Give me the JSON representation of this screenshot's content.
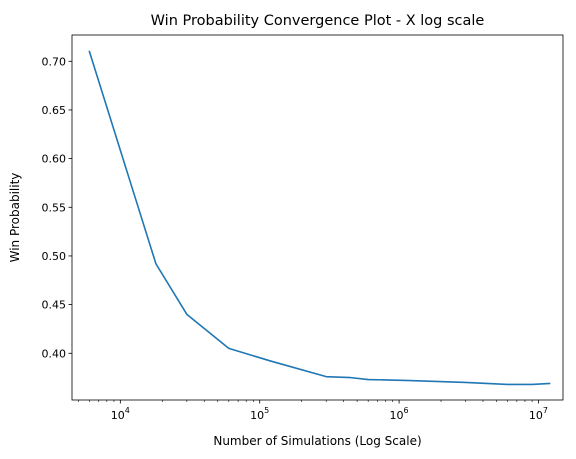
{
  "chart_data": {
    "type": "line",
    "title": "Win Probability Convergence Plot - X log scale",
    "xlabel": "Number of Simulations (Log Scale)",
    "ylabel": "Win Probability",
    "xscale": "log",
    "yscale": "linear",
    "xlim": [
      4500,
      15000000
    ],
    "ylim": [
      0.352,
      0.727
    ],
    "grid": false,
    "legend": "none",
    "line_color": "#1f77b4",
    "xticks": [
      {
        "value": 10000,
        "base": "10",
        "exp": "4"
      },
      {
        "value": 100000,
        "base": "10",
        "exp": "5"
      },
      {
        "value": 1000000,
        "base": "10",
        "exp": "6"
      },
      {
        "value": 10000000,
        "base": "10",
        "exp": "7"
      }
    ],
    "yticks": [
      {
        "value": 0.4,
        "label": "0.40"
      },
      {
        "value": 0.45,
        "label": "0.45"
      },
      {
        "value": 0.5,
        "label": "0.50"
      },
      {
        "value": 0.55,
        "label": "0.55"
      },
      {
        "value": 0.6,
        "label": "0.60"
      },
      {
        "value": 0.65,
        "label": "0.65"
      },
      {
        "value": 0.7,
        "label": "0.70"
      }
    ],
    "series": [
      {
        "x": [
          6000,
          18000,
          30000,
          60000,
          120000,
          300000,
          450000,
          600000,
          1200000,
          3000000,
          6000000,
          9000000,
          12000000
        ],
        "y": [
          0.71,
          0.492,
          0.44,
          0.405,
          0.392,
          0.376,
          0.375,
          0.373,
          0.372,
          0.37,
          0.368,
          0.368,
          0.369
        ]
      }
    ]
  }
}
